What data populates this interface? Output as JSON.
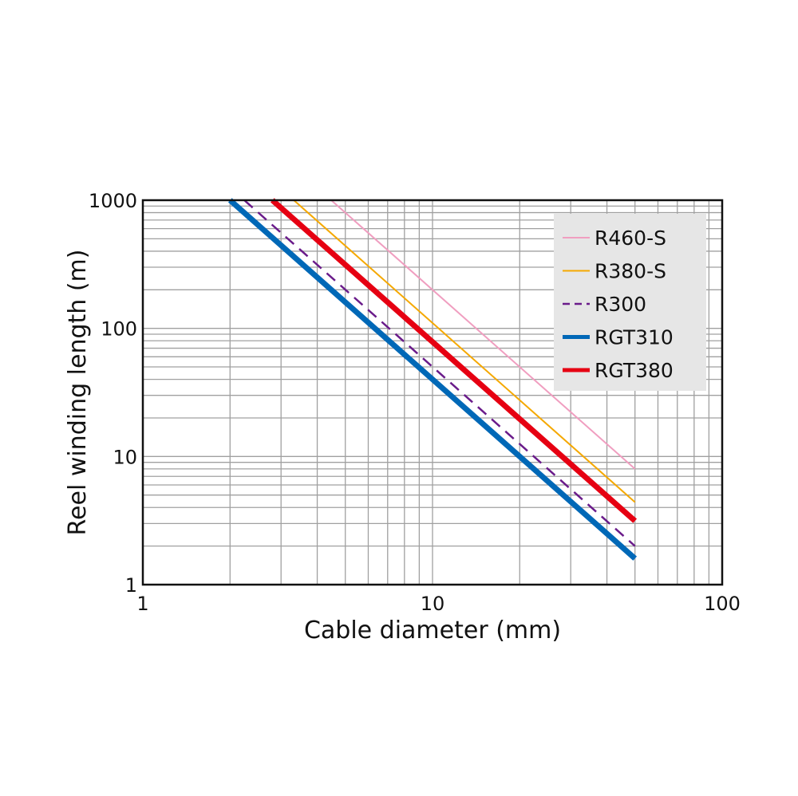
{
  "chart_data": {
    "type": "line",
    "xlabel": "Cable diameter (mm)",
    "ylabel": "Reel winding length (m)",
    "x_scale": "log",
    "y_scale": "log",
    "xlim": [
      1,
      100
    ],
    "ylim": [
      1,
      1000
    ],
    "x_ticks": [
      "1",
      "10",
      "100"
    ],
    "y_ticks": [
      "1",
      "10",
      "100",
      "1000"
    ],
    "grid": true,
    "legend_position": "top-right",
    "series": [
      {
        "name": "R460-S",
        "color": "#f09ec0",
        "style": "solid-thin",
        "x": [
          4.47,
          50
        ],
        "y": [
          1000,
          8.0
        ]
      },
      {
        "name": "R380-S",
        "color": "#f5a800",
        "style": "solid-thin",
        "x": [
          3.32,
          50
        ],
        "y": [
          1000,
          4.4
        ]
      },
      {
        "name": "R300",
        "color": "#6a1b8a",
        "style": "dashed",
        "x": [
          2.24,
          50
        ],
        "y": [
          1000,
          2.0
        ]
      },
      {
        "name": "RGT310",
        "color": "#0068b7",
        "style": "solid-thick",
        "x": [
          2.0,
          50
        ],
        "y": [
          1000,
          1.6
        ]
      },
      {
        "name": "RGT380",
        "color": "#e60012",
        "style": "solid-thick",
        "x": [
          2.8,
          50
        ],
        "y": [
          1000,
          3.14
        ]
      }
    ]
  }
}
